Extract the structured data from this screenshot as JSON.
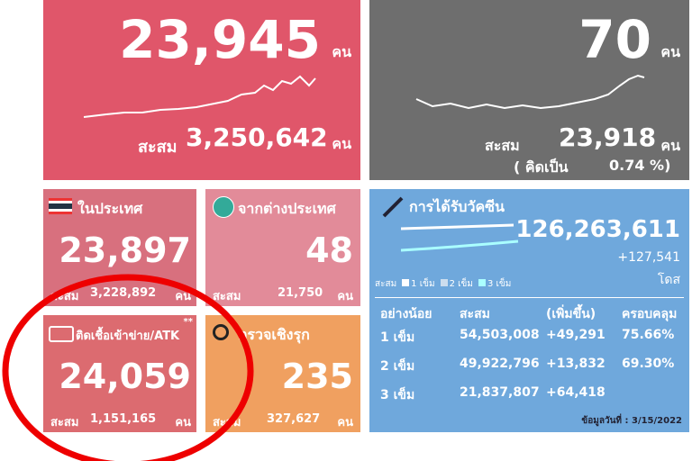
{
  "main_cases": {
    "value": "23,945",
    "unit": "คน",
    "total_label": "สะสม",
    "total": "3,250,642",
    "total_unit": "คน"
  },
  "deaths": {
    "value": "70",
    "unit": "คน",
    "total_label": "สะสม",
    "total": "23,918",
    "total_unit": "คน",
    "ratio_label": "( คิดเป็น",
    "ratio": "0.74 %)"
  },
  "domestic": {
    "title": "ในประเทศ",
    "value": "23,897",
    "total_label": "สะสม",
    "total": "3,228,892",
    "total_unit": "คน"
  },
  "imported": {
    "title": "จากต่างประเทศ",
    "value": "48",
    "total_label": "สะสม",
    "total": "21,750",
    "total_unit": "คน"
  },
  "atk": {
    "title": "ติดเชื้อเข้าข่าย/ATK",
    "mark": "**",
    "value": "24,059",
    "total_label": "สะสม",
    "total": "1,151,165",
    "total_unit": "คน"
  },
  "proactive": {
    "title": "ตรวจเชิงรุก",
    "value": "235",
    "total_label": "สะสม",
    "total": "327,627",
    "total_unit": "คน"
  },
  "vaccine": {
    "title": "การได้รับวัคซีน",
    "total": "126,263,611",
    "increase": "+127,541",
    "unit": "โดส",
    "legend": [
      "สะสม",
      "1 เข็ม",
      "2 เข็ม",
      "3 เข็ม"
    ],
    "table": {
      "header": [
        "อย่างน้อย",
        "สะสม",
        "(เพิ่มขึ้น)",
        "ครอบคลุม"
      ],
      "rows": [
        [
          "1 เข็ม",
          "54,503,008",
          "+49,291",
          "75.66%"
        ],
        [
          "2 เข็ม",
          "49,922,796",
          "+13,832",
          "69.30%"
        ],
        [
          "3 เข็ม",
          "21,837,807",
          "+64,418"
        ]
      ]
    },
    "footer": "ข้อมูลวันที่ : 3/15/2022"
  }
}
